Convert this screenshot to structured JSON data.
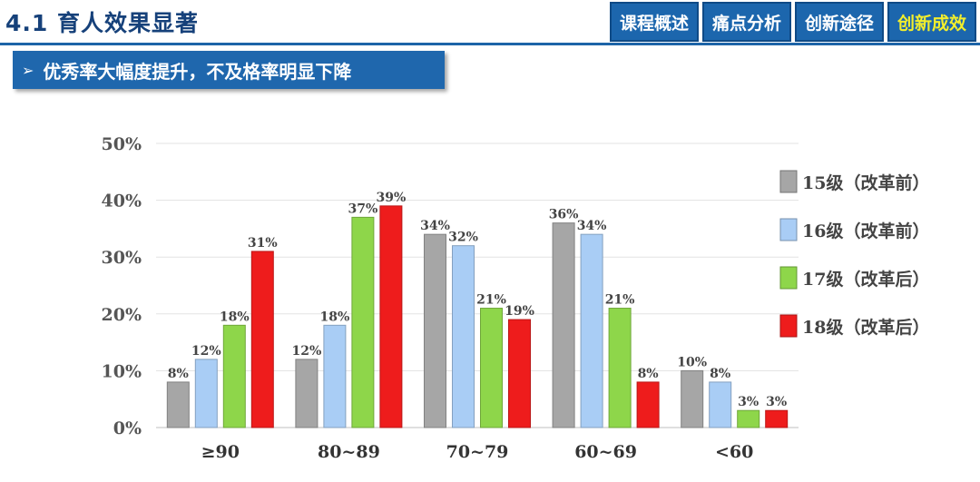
{
  "header": {
    "title": "4.1 育人效果显著"
  },
  "nav": {
    "tabs": [
      {
        "label": "课程概述",
        "active": false
      },
      {
        "label": "痛点分析",
        "active": false
      },
      {
        "label": "创新途径",
        "active": false
      },
      {
        "label": "创新成效",
        "active": true
      }
    ]
  },
  "subtitle": {
    "arrow": "➢",
    "text": "优秀率大幅度提升，不及格率明显下降"
  },
  "chart_data": {
    "type": "bar",
    "title": "",
    "xlabel": "",
    "ylabel": "",
    "categories": [
      "≥90",
      "80~89",
      "70~79",
      "60~69",
      "<60"
    ],
    "series": [
      {
        "name": "15级（改革前）",
        "values": [
          8,
          12,
          34,
          36,
          10
        ],
        "color": "#a6a6a6"
      },
      {
        "name": "16级（改革前）",
        "values": [
          12,
          18,
          32,
          34,
          8
        ],
        "color": "#a9cdf5"
      },
      {
        "name": "17级（改革后）",
        "values": [
          18,
          37,
          21,
          21,
          3
        ],
        "color": "#8ed64a"
      },
      {
        "name": "18级（改革后）",
        "values": [
          31,
          39,
          19,
          8,
          3
        ],
        "color": "#ee1c1c"
      }
    ],
    "ylim": [
      0,
      50
    ],
    "yticks": [
      "0%",
      "10%",
      "20%",
      "30%",
      "40%",
      "50%"
    ],
    "value_suffix": "%",
    "grid": true,
    "legend": "right"
  }
}
